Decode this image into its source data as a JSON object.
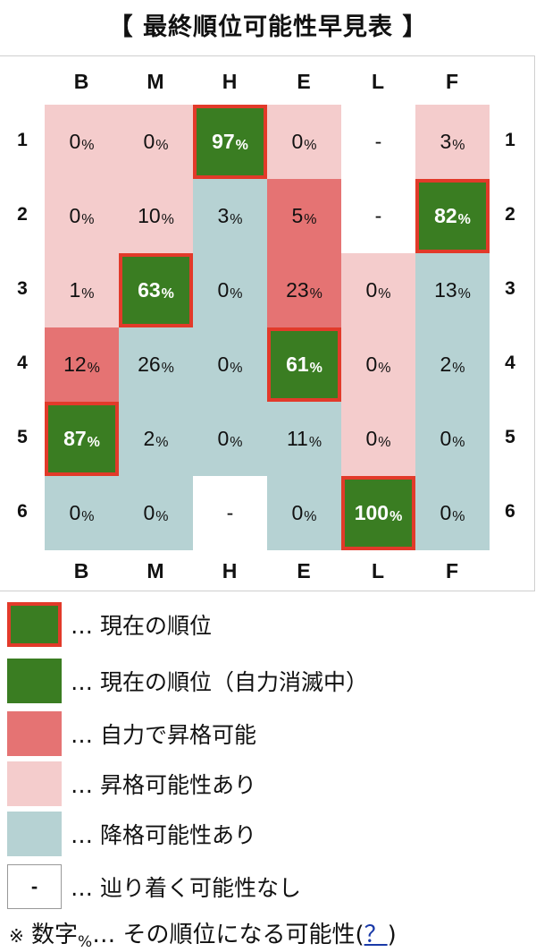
{
  "title": "【 最終順位可能性早見表 】",
  "chart_data": {
    "type": "table",
    "columns": [
      "B",
      "M",
      "H",
      "E",
      "L",
      "F"
    ],
    "rows": [
      "1",
      "2",
      "3",
      "4",
      "5",
      "6"
    ],
    "unit": "%",
    "values": [
      [
        "0",
        "0",
        "97",
        "0",
        "-",
        "3"
      ],
      [
        "0",
        "10",
        "3",
        "5",
        "-",
        "82"
      ],
      [
        "1",
        "63",
        "0",
        "23",
        "0",
        "13"
      ],
      [
        "12",
        "26",
        "0",
        "61",
        "0",
        "2"
      ],
      [
        "87",
        "2",
        "0",
        "11",
        "0",
        "0"
      ],
      [
        "0",
        "0",
        "-",
        "0",
        "100",
        "0"
      ]
    ],
    "cell_status": [
      [
        "promotion_possible",
        "promotion_possible",
        "current",
        "promotion_possible",
        "impossible",
        "promotion_possible"
      ],
      [
        "promotion_possible",
        "promotion_possible",
        "relegation_possible",
        "self_promotion",
        "impossible",
        "current"
      ],
      [
        "promotion_possible",
        "current",
        "relegation_possible",
        "self_promotion",
        "promotion_possible",
        "relegation_possible"
      ],
      [
        "self_promotion",
        "relegation_possible",
        "relegation_possible",
        "current",
        "promotion_possible",
        "relegation_possible"
      ],
      [
        "current",
        "relegation_possible",
        "relegation_possible",
        "relegation_possible",
        "promotion_possible",
        "relegation_possible"
      ],
      [
        "relegation_possible",
        "relegation_possible",
        "impossible",
        "relegation_possible",
        "current",
        "relegation_possible"
      ]
    ],
    "colors": {
      "current": "#3a7d22",
      "current_border": "#e23a2a",
      "self_promotion": "#e57373",
      "promotion_possible": "#f4cccc",
      "relegation_possible": "#b6d2d3",
      "impossible": "#ffffff"
    }
  },
  "legend": [
    {
      "status": "current",
      "text": "… 現在の順位",
      "symbol": ""
    },
    {
      "status": "current_elim",
      "text": "… 現在の順位（自力消滅中）",
      "symbol": ""
    },
    {
      "status": "self_promotion",
      "text": "… 自力で昇格可能",
      "symbol": ""
    },
    {
      "status": "promotion_possible",
      "text": "… 昇格可能性あり",
      "symbol": ""
    },
    {
      "status": "relegation_possible",
      "text": "… 降格可能性あり",
      "symbol": ""
    },
    {
      "status": "impossible",
      "text": "… 辿り着く可能性なし",
      "symbol": "-"
    }
  ],
  "note": {
    "mark": "※",
    "pre": " 数字",
    "unit": "%",
    "post": "… その順位になる可能性(",
    "help": "？",
    "end": ")"
  }
}
